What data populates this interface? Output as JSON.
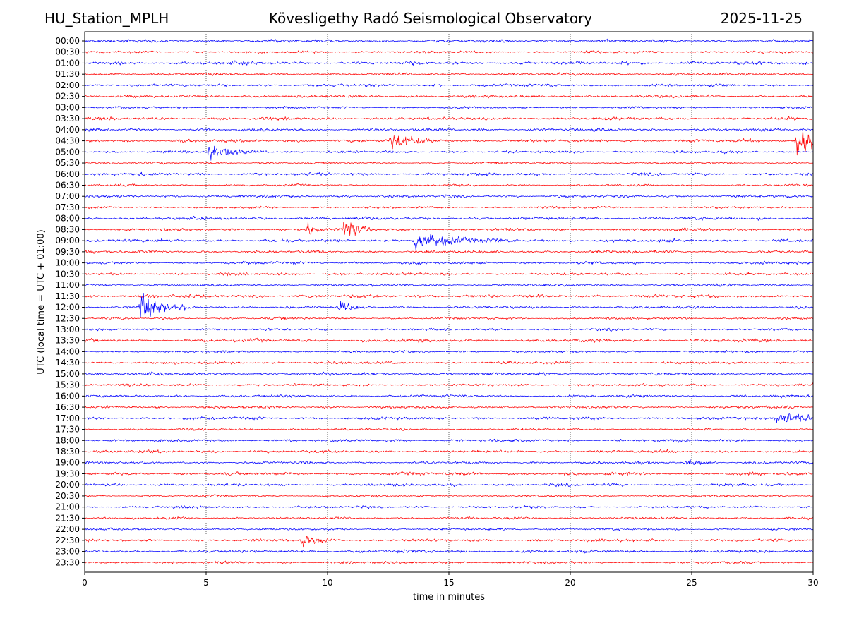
{
  "header": {
    "station": "HU_Station_MPLH",
    "observatory": "Kövesligethy Radó Seismological Observatory",
    "date": "2025-11-25"
  },
  "chart_data": {
    "type": "line",
    "xlabel": "time in minutes",
    "ylabel": "UTC (local time = UTC + 01:00)",
    "xlim": [
      0,
      30
    ],
    "xticks": [
      0,
      5,
      10,
      15,
      20,
      25,
      30
    ],
    "grid": "vertical dotted lines at x ticks",
    "trace_colors": [
      "#0000ff",
      "#ff0000"
    ],
    "rows": [
      "00:00",
      "00:30",
      "01:00",
      "01:30",
      "02:00",
      "02:30",
      "03:00",
      "03:30",
      "04:00",
      "04:30",
      "05:00",
      "05:30",
      "06:00",
      "06:30",
      "07:00",
      "07:30",
      "08:00",
      "08:30",
      "09:00",
      "09:30",
      "10:00",
      "10:30",
      "11:00",
      "11:30",
      "12:00",
      "12:30",
      "13:00",
      "13:30",
      "14:00",
      "14:30",
      "15:00",
      "15:30",
      "16:00",
      "16:30",
      "17:00",
      "17:30",
      "18:00",
      "18:30",
      "19:00",
      "19:30",
      "20:00",
      "20:30",
      "21:00",
      "21:30",
      "22:00",
      "22:30",
      "23:00",
      "23:30"
    ],
    "events": [
      {
        "row": "04:30",
        "minute": 12.6,
        "amplitude": 1.3,
        "duration": 0.8
      },
      {
        "row": "04:30",
        "minute": 29.3,
        "amplitude": 2.6,
        "duration": 0.8
      },
      {
        "row": "05:00",
        "minute": 5.1,
        "amplitude": 1.4,
        "duration": 0.9
      },
      {
        "row": "08:30",
        "minute": 9.2,
        "amplitude": 1.3,
        "duration": 0.3
      },
      {
        "row": "08:30",
        "minute": 10.7,
        "amplitude": 2.4,
        "duration": 0.4
      },
      {
        "row": "09:00",
        "minute": 13.6,
        "amplitude": 1.5,
        "duration": 1.2
      },
      {
        "row": "12:00",
        "minute": 2.3,
        "amplitude": 2.4,
        "duration": 0.8
      },
      {
        "row": "12:00",
        "minute": 10.5,
        "amplitude": 0.8,
        "duration": 0.4
      },
      {
        "row": "17:00",
        "minute": 28.5,
        "amplitude": 1.0,
        "duration": 1.3
      },
      {
        "row": "19:00",
        "minute": 24.8,
        "amplitude": 0.6,
        "duration": 0.5
      },
      {
        "row": "22:30",
        "minute": 8.9,
        "amplitude": 1.0,
        "duration": 0.6
      }
    ]
  }
}
